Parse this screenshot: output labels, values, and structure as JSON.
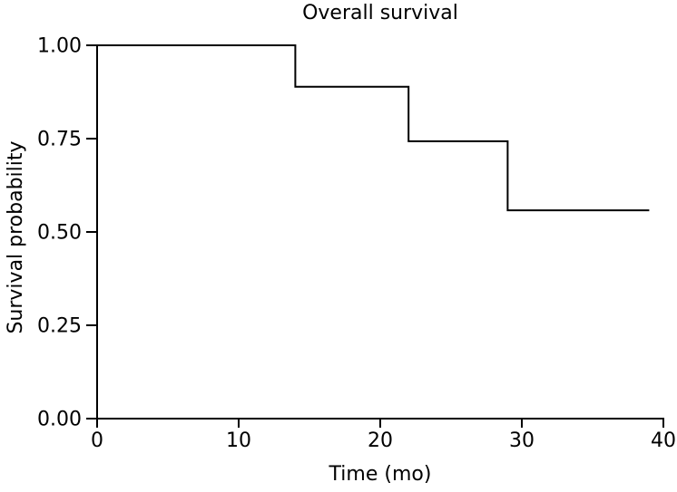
{
  "chart_data": {
    "type": "line",
    "subtype": "kaplan-meier-step",
    "title": "Overall survival",
    "xlabel": "Time (mo)",
    "ylabel": "Survival probability",
    "xlim": [
      0,
      40
    ],
    "ylim": [
      0.0,
      1.0
    ],
    "grid": false,
    "legend": "none",
    "background_color": "#ffffff",
    "axis_color": "#000000",
    "text_color": "#000000",
    "xticks": [
      {
        "value": 0,
        "label": "0"
      },
      {
        "value": 10,
        "label": "10"
      },
      {
        "value": 20,
        "label": "20"
      },
      {
        "value": 30,
        "label": "30"
      },
      {
        "value": 40,
        "label": "40"
      }
    ],
    "yticks": [
      {
        "value": 0.0,
        "label": "0.00"
      },
      {
        "value": 0.25,
        "label": "0.25"
      },
      {
        "value": 0.5,
        "label": "0.50"
      },
      {
        "value": 0.75,
        "label": "0.75"
      },
      {
        "value": 1.0,
        "label": "1.00"
      }
    ],
    "series": [
      {
        "name": "Overall survival",
        "color": "#000000",
        "line_width": 2,
        "steps": [
          {
            "time": 0,
            "survival": 1.0
          },
          {
            "time": 14,
            "survival": 0.889
          },
          {
            "time": 22,
            "survival": 0.743
          },
          {
            "time": 29,
            "survival": 0.558
          }
        ],
        "end_time": 39
      }
    ]
  }
}
